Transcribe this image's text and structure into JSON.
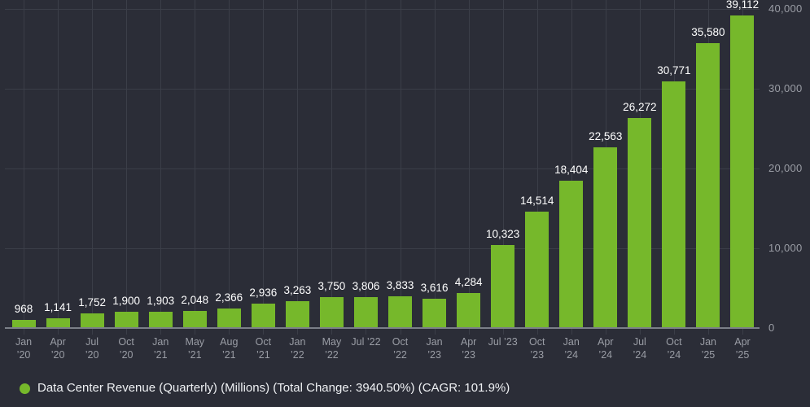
{
  "chart_data": {
    "type": "bar",
    "title": "",
    "legend_label": "Data Center Revenue (Quarterly) (Millions) (Total Change: 3940.50%) (CAGR: 101.9%)",
    "legend_position": "bottom",
    "categories": [
      "Jan ’20",
      "Apr ’20",
      "Jul ’20",
      "Oct ’20",
      "Jan ’21",
      "May ’21",
      "Aug ’21",
      "Oct ’21",
      "Jan ’22",
      "May ’22",
      "Jul ’22",
      "Oct ’22",
      "Jan ’23",
      "Apr ’23",
      "Jul ’23",
      "Oct ’23",
      "Jan ’24",
      "Apr ’24",
      "Jul ’24",
      "Oct ’24",
      "Jan ’25",
      "Apr ’25"
    ],
    "single_line_tick_indices": [
      10,
      14
    ],
    "values": [
      968,
      1141,
      1752,
      1900,
      1903,
      2048,
      2366,
      2936,
      3263,
      3750,
      3806,
      3833,
      3616,
      4284,
      10323,
      14514,
      18404,
      22563,
      26272,
      30771,
      35580,
      39112
    ],
    "value_labels": [
      "968",
      "1,141",
      "1,752",
      "1,900",
      "1,903",
      "2,048",
      "2,366",
      "2,936",
      "3,263",
      "3,750",
      "3,806",
      "3,833",
      "3,616",
      "4,284",
      "10,323",
      "14,514",
      "18,404",
      "22,563",
      "26,272",
      "30,771",
      "35,580",
      "39,112"
    ],
    "xlabel": "",
    "ylabel": "",
    "ylim": [
      0,
      40000
    ],
    "yticks": [
      {
        "value": 0,
        "label": "0"
      },
      {
        "value": 10000,
        "label": "10,000"
      },
      {
        "value": 20000,
        "label": "20,000"
      },
      {
        "value": 30000,
        "label": "30,000"
      },
      {
        "value": 40000,
        "label": "40,000"
      }
    ],
    "grid": true,
    "y_axis_side": "right",
    "colors": {
      "background": "#2b2d37",
      "bar": "#76b82b",
      "grid": "#3b3e48",
      "axis_line": "#7b7f88",
      "value_label": "#ffffff",
      "tick_label": "#9a9da5",
      "legend_text": "#eef0f3"
    }
  }
}
